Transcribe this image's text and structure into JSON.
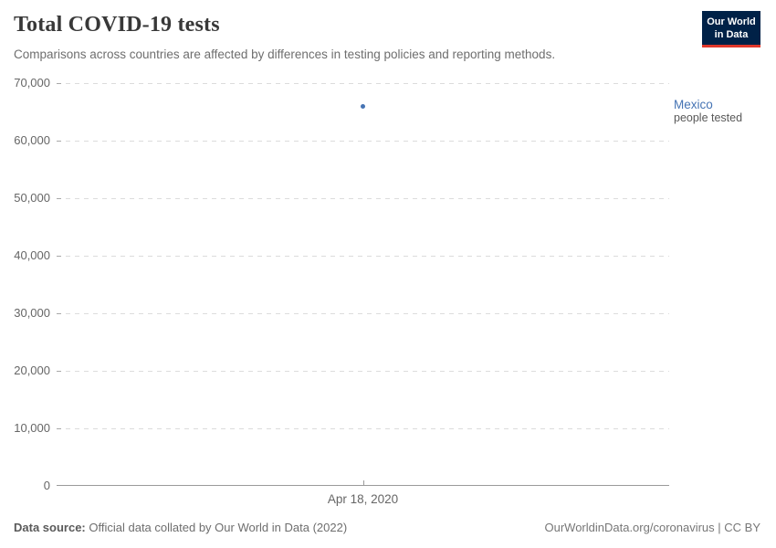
{
  "header": {
    "title": "Total COVID-19 tests",
    "subtitle": "Comparisons across countries are affected by differences in testing policies and reporting methods."
  },
  "logo": {
    "line1": "Our World",
    "line2": "in Data"
  },
  "chart_data": {
    "type": "scatter",
    "title": "Total COVID-19 tests",
    "x": [
      "Apr 18, 2020"
    ],
    "series": [
      {
        "name": "Mexico",
        "sublabel": "people tested",
        "values": [
          66000
        ],
        "color": "#4674b4"
      }
    ],
    "ylim": [
      0,
      70000
    ],
    "yticks": [
      0,
      10000,
      20000,
      30000,
      40000,
      50000,
      60000,
      70000
    ],
    "xlabel": "",
    "ylabel": "",
    "grid": "horizontal-dashed",
    "legend_position": "right-of-plot-at-value"
  },
  "entity_label": {
    "name": "Mexico",
    "sublabel": "people tested"
  },
  "footer": {
    "source_prefix": "Data source:",
    "source_text": "Official data collated by Our World in Data (2022)",
    "credit": "OurWorldinData.org/coronavirus | CC BY"
  },
  "colors": {
    "accent_blue": "#4674b4",
    "logo_bg": "#002147",
    "logo_accent": "#e0372b",
    "grid": "#dcdcdc",
    "axis": "#9b9b9b",
    "text_muted": "#666666"
  }
}
